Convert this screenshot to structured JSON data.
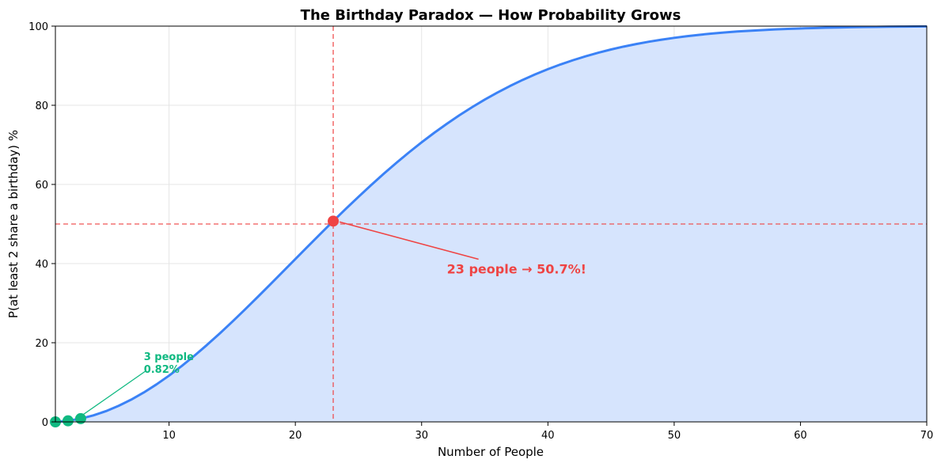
{
  "chart_data": {
    "type": "area",
    "title": "The Birthday Paradox — How Probability Grows",
    "xlabel": "Number of People",
    "ylabel": "P(at least 2 share a birthday) %",
    "xlim": [
      1,
      70
    ],
    "ylim": [
      0,
      100
    ],
    "x_ticks": [
      10,
      20,
      30,
      40,
      50,
      60,
      70
    ],
    "y_ticks": [
      0,
      20,
      40,
      60,
      80,
      100
    ],
    "x_tick_labels": [
      "10",
      "20",
      "30",
      "40",
      "50",
      "60",
      "70"
    ],
    "y_tick_labels": [
      "0",
      "20",
      "40",
      "60",
      "80",
      "100"
    ],
    "grid": true,
    "series": [
      {
        "x": [
          1,
          2,
          3,
          4,
          5,
          6,
          7,
          8,
          9,
          10,
          11,
          12,
          13,
          14,
          15,
          16,
          17,
          18,
          19,
          20,
          21,
          22,
          23,
          24,
          25,
          26,
          27,
          28,
          29,
          30,
          31,
          32,
          33,
          34,
          35,
          36,
          37,
          38,
          39,
          40,
          41,
          42,
          43,
          44,
          45,
          46,
          47,
          48,
          49,
          50,
          51,
          52,
          53,
          54,
          55,
          56,
          57,
          58,
          59,
          60,
          61,
          62,
          63,
          64,
          65,
          66,
          67,
          68,
          69,
          70
        ],
        "values": [
          0,
          0.27,
          0.82,
          1.64,
          2.71,
          4.05,
          5.62,
          7.43,
          9.46,
          11.69,
          14.11,
          16.7,
          19.44,
          22.31,
          25.29,
          28.36,
          31.5,
          34.69,
          37.91,
          41.14,
          44.37,
          47.57,
          50.73,
          53.83,
          56.87,
          59.82,
          62.69,
          65.45,
          68.1,
          70.63,
          73.05,
          75.33,
          77.5,
          79.53,
          81.44,
          83.22,
          84.87,
          86.41,
          87.82,
          89.12,
          90.32,
          91.4,
          92.39,
          93.29,
          94.1,
          94.83,
          95.48,
          96.06,
          96.58,
          97.04,
          97.45,
          97.81,
          98.13,
          98.41,
          98.66,
          98.83,
          99.01,
          99.17,
          99.3,
          99.41,
          99.51,
          99.59,
          99.66,
          99.72,
          99.77,
          99.81,
          99.84,
          99.87,
          99.89,
          99.92
        ],
        "line_color": "#3b82f6",
        "fill_color": "#d6e4fd"
      }
    ],
    "reference_lines": [
      {
        "axis": "x",
        "value": 23,
        "color": "#ef4444",
        "style": "dashed"
      },
      {
        "axis": "y",
        "value": 50,
        "color": "#ef4444",
        "style": "dashed"
      }
    ],
    "highlight_points": [
      {
        "x": 23,
        "y": 50.73,
        "color": "#ef4444"
      },
      {
        "x": 1,
        "y": 0,
        "color": "#10b981"
      },
      {
        "x": 2,
        "y": 0.27,
        "color": "#10b981"
      },
      {
        "x": 3,
        "y": 0.82,
        "color": "#10b981"
      }
    ],
    "annotations": [
      {
        "text": "23 people → 50.7%!",
        "target_x": 23,
        "target_y": 50.73,
        "text_x": 32,
        "text_y": 38.5,
        "color": "#ef4444"
      },
      {
        "lines": [
          "3 people",
          "0.82%"
        ],
        "target_x": 3,
        "target_y": 0.82,
        "text_x": 8,
        "text_y": 14,
        "color": "#10b981"
      }
    ]
  }
}
